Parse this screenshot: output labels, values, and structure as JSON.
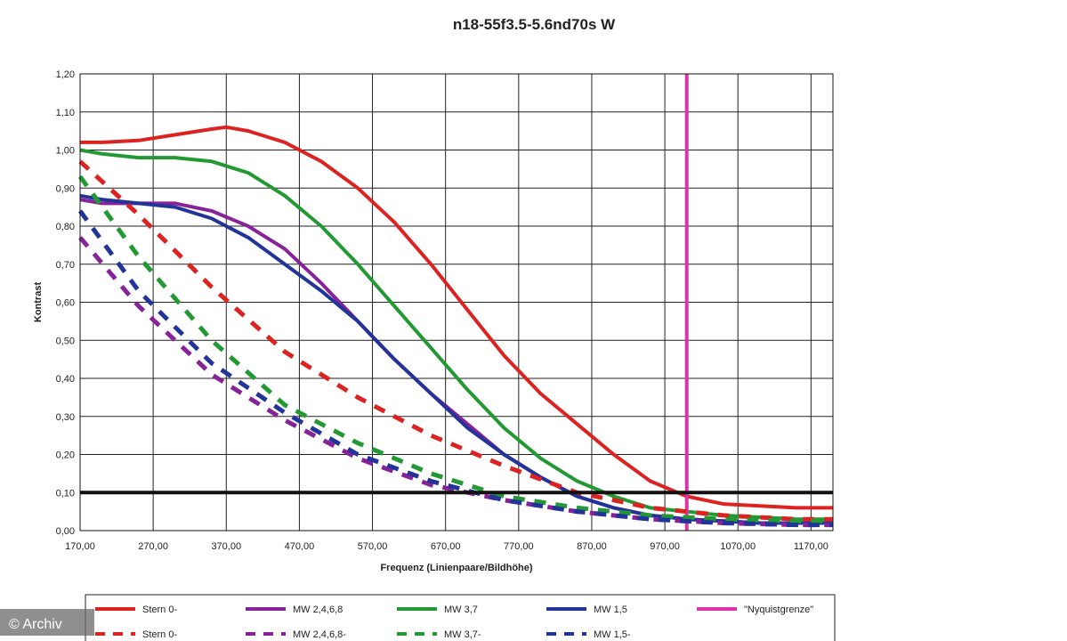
{
  "chart_data": {
    "type": "line",
    "title": "n18-55f3.5-5.6nd70s W",
    "xlabel": "Frequenz (Linienpaare/Bildhöhe)",
    "ylabel": "Kontrast",
    "xlim": [
      170,
      1200
    ],
    "ylim": [
      0,
      1.2
    ],
    "x_ticks": [
      "170,00",
      "270,00",
      "370,00",
      "470,00",
      "570,00",
      "670,00",
      "770,00",
      "870,00",
      "970,00",
      "1070,00",
      "1170,00"
    ],
    "y_ticks": [
      "0,00",
      "0,10",
      "0,20",
      "0,30",
      "0,40",
      "0,50",
      "0,60",
      "0,70",
      "0,80",
      "0,90",
      "1,00",
      "1,10",
      "1,20"
    ],
    "grid": true,
    "legend_position": "bottom",
    "series": [
      {
        "name": "Stern 0-",
        "color": "#dd2222",
        "dash": false,
        "x": [
          170,
          200,
          250,
          300,
          350,
          370,
          400,
          450,
          500,
          550,
          600,
          650,
          700,
          750,
          800,
          850,
          900,
          950,
          1000,
          1050,
          1100,
          1150,
          1200
        ],
        "y": [
          1.02,
          1.02,
          1.025,
          1.04,
          1.055,
          1.06,
          1.05,
          1.02,
          0.97,
          0.9,
          0.81,
          0.7,
          0.58,
          0.46,
          0.36,
          0.28,
          0.2,
          0.13,
          0.09,
          0.07,
          0.065,
          0.06,
          0.06
        ]
      },
      {
        "name": "MW 2,4,6,8",
        "color": "#882299",
        "dash": false,
        "x": [
          170,
          200,
          250,
          300,
          350,
          400,
          450,
          500,
          550,
          600,
          650,
          700,
          750,
          800,
          850,
          900,
          950,
          1000,
          1050,
          1100,
          1150,
          1200
        ],
        "y": [
          0.87,
          0.86,
          0.86,
          0.86,
          0.84,
          0.8,
          0.74,
          0.65,
          0.55,
          0.45,
          0.36,
          0.28,
          0.2,
          0.14,
          0.09,
          0.06,
          0.04,
          0.03,
          0.025,
          0.02,
          0.02,
          0.02
        ]
      },
      {
        "name": "MW 3,7",
        "color": "#229933",
        "dash": false,
        "x": [
          170,
          200,
          250,
          300,
          350,
          400,
          450,
          500,
          550,
          600,
          650,
          700,
          750,
          800,
          850,
          900,
          950,
          1000,
          1050,
          1100,
          1150,
          1200
        ],
        "y": [
          1.0,
          0.99,
          0.98,
          0.98,
          0.97,
          0.94,
          0.88,
          0.8,
          0.7,
          0.59,
          0.48,
          0.37,
          0.27,
          0.19,
          0.13,
          0.09,
          0.06,
          0.05,
          0.04,
          0.035,
          0.03,
          0.03
        ]
      },
      {
        "name": "MW 1,5",
        "color": "#223399",
        "dash": false,
        "x": [
          170,
          200,
          250,
          300,
          350,
          400,
          450,
          500,
          550,
          600,
          650,
          700,
          750,
          800,
          850,
          900,
          950,
          1000,
          1050,
          1100,
          1150,
          1200
        ],
        "y": [
          0.88,
          0.87,
          0.86,
          0.85,
          0.82,
          0.77,
          0.7,
          0.63,
          0.55,
          0.45,
          0.36,
          0.27,
          0.2,
          0.14,
          0.09,
          0.06,
          0.04,
          0.03,
          0.025,
          0.02,
          0.02,
          0.02
        ]
      },
      {
        "name": "\"Nyquistgrenze\"",
        "color": "#dd33aa",
        "dash": false,
        "x": [
          1000,
          1000
        ],
        "y": [
          0,
          1.2
        ]
      },
      {
        "name": "Stern 0-",
        "color": "#dd2222",
        "dash": true,
        "x": [
          170,
          250,
          350,
          450,
          550,
          650,
          750,
          850,
          950,
          1050,
          1150,
          1200
        ],
        "y": [
          0.97,
          0.83,
          0.64,
          0.47,
          0.35,
          0.25,
          0.17,
          0.1,
          0.06,
          0.04,
          0.03,
          0.03
        ]
      },
      {
        "name": "MW 2,4,6,8-",
        "color": "#882299",
        "dash": true,
        "x": [
          170,
          250,
          350,
          450,
          550,
          650,
          750,
          850,
          950,
          1050,
          1150,
          1200
        ],
        "y": [
          0.77,
          0.59,
          0.41,
          0.29,
          0.19,
          0.12,
          0.08,
          0.05,
          0.03,
          0.02,
          0.015,
          0.015
        ]
      },
      {
        "name": "MW 3,7-",
        "color": "#229933",
        "dash": true,
        "x": [
          170,
          250,
          350,
          450,
          550,
          650,
          750,
          850,
          950,
          1050,
          1150,
          1200
        ],
        "y": [
          0.93,
          0.72,
          0.5,
          0.33,
          0.23,
          0.15,
          0.09,
          0.06,
          0.04,
          0.03,
          0.025,
          0.025
        ]
      },
      {
        "name": "MW 1,5-",
        "color": "#223399",
        "dash": true,
        "x": [
          170,
          250,
          350,
          450,
          550,
          650,
          750,
          850,
          950,
          1050,
          1150,
          1200
        ],
        "y": [
          0.84,
          0.63,
          0.44,
          0.31,
          0.2,
          0.13,
          0.08,
          0.05,
          0.03,
          0.02,
          0.015,
          0.015
        ]
      }
    ],
    "reference_line": {
      "y": 0.1,
      "color": "#111111"
    }
  },
  "watermark": "© Archiv"
}
